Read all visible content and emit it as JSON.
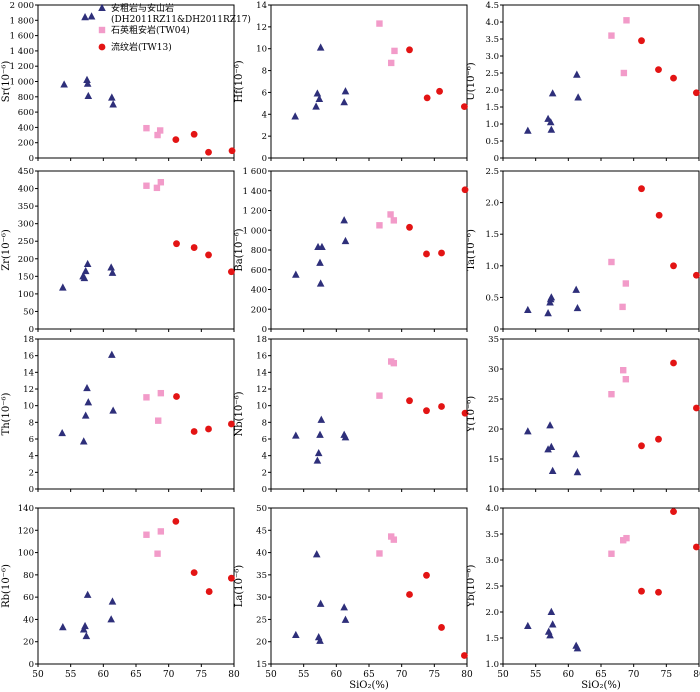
{
  "figure": {
    "x_axis_label": "SiO₂(%)"
  },
  "legend": {
    "entries": [
      {
        "series": "andesite",
        "label_lines": [
          "安粗岩与安山岩",
          "(DH2011RZ11&DH2011RZ17)"
        ]
      },
      {
        "series": "quartz_trachyte",
        "label_lines": [
          "石英粗安岩(TW04)"
        ]
      },
      {
        "series": "rhyolite",
        "label_lines": [
          "流纹岩(TW13)"
        ]
      }
    ]
  },
  "series_style": {
    "andesite": {
      "marker": "triangle",
      "color": "#2e2f7a"
    },
    "quartz_trachyte": {
      "marker": "square",
      "color": "#f29bc9"
    },
    "rhyolite": {
      "marker": "circle",
      "color": "#e31414"
    }
  },
  "chart_data": [
    {
      "type": "scatter",
      "ylabel": "Sr(10⁻⁶)",
      "xlim": [
        50,
        80
      ],
      "ylim": [
        0,
        2000
      ],
      "yticks": [
        "0",
        "200",
        "400",
        "600",
        "800",
        "1 000",
        "1 200",
        "1 400",
        "1 600",
        "1 800",
        "2 000"
      ],
      "xticks": [],
      "series": [
        {
          "key": "andesite",
          "x": [
            54,
            57.2,
            57.5,
            57.6,
            57.7,
            58.2,
            61.3,
            61.5
          ],
          "y": [
            960,
            1840,
            1020,
            970,
            810,
            1850,
            790,
            700
          ]
        },
        {
          "key": "quartz_trachyte",
          "x": [
            66.6,
            68.3,
            68.7
          ],
          "y": [
            390,
            300,
            360
          ]
        },
        {
          "key": "rhyolite",
          "x": [
            71.1,
            73.9,
            76.1,
            79.7
          ],
          "y": [
            240,
            310,
            75,
            95
          ]
        }
      ]
    },
    {
      "type": "scatter",
      "ylabel": "Hf(10⁻⁶)",
      "xlim": [
        50,
        80
      ],
      "ylim": [
        0,
        14
      ],
      "yticks": [
        "0",
        "2",
        "4",
        "6",
        "8",
        "10",
        "12",
        "14"
      ],
      "xticks": [],
      "series": [
        {
          "key": "andesite",
          "x": [
            53.7,
            56.9,
            57.1,
            57.4,
            57.6,
            61.2,
            61.4
          ],
          "y": [
            3.8,
            4.7,
            5.9,
            5.4,
            10.1,
            5.1,
            6.1
          ]
        },
        {
          "key": "quartz_trachyte",
          "x": [
            66.6,
            68.4,
            68.9
          ],
          "y": [
            12.3,
            8.7,
            9.8
          ]
        },
        {
          "key": "rhyolite",
          "x": [
            71.2,
            73.9,
            75.8,
            79.6
          ],
          "y": [
            9.9,
            5.5,
            6.1,
            4.7
          ]
        }
      ]
    },
    {
      "type": "scatter",
      "ylabel": "U(10⁻⁶)",
      "xlim": [
        50,
        80
      ],
      "ylim": [
        0,
        4.5
      ],
      "yticks": [
        "0",
        "0.5",
        "1.0",
        "1.5",
        "2.0",
        "2.5",
        "3.0",
        "3.5",
        "4.0",
        "4.5"
      ],
      "xticks": [],
      "series": [
        {
          "key": "andesite",
          "x": [
            53.8,
            56.9,
            57.3,
            57.4,
            57.6,
            61.3,
            61.5
          ],
          "y": [
            0.8,
            1.15,
            1.05,
            0.83,
            1.9,
            2.45,
            1.78
          ]
        },
        {
          "key": "quartz_trachyte",
          "x": [
            66.6,
            68.5,
            68.9
          ],
          "y": [
            3.6,
            2.5,
            4.05
          ]
        },
        {
          "key": "rhyolite",
          "x": [
            71.2,
            73.8,
            76.1,
            79.6
          ],
          "y": [
            3.45,
            2.6,
            2.35,
            1.92
          ]
        }
      ]
    },
    {
      "type": "scatter",
      "ylabel": "Zr(10⁻⁶)",
      "xlim": [
        50,
        80
      ],
      "ylim": [
        0,
        450
      ],
      "yticks": [
        "0",
        "50",
        "100",
        "150",
        "200",
        "250",
        "300",
        "350",
        "400",
        "450"
      ],
      "xticks": [],
      "series": [
        {
          "key": "andesite",
          "x": [
            53.8,
            56.9,
            57.1,
            57.3,
            57.6,
            61.2,
            61.4
          ],
          "y": [
            118,
            150,
            145,
            165,
            185,
            175,
            160
          ]
        },
        {
          "key": "quartz_trachyte",
          "x": [
            66.6,
            68.2,
            68.8
          ],
          "y": [
            408,
            402,
            418
          ]
        },
        {
          "key": "rhyolite",
          "x": [
            71.2,
            73.9,
            76.1,
            79.6
          ],
          "y": [
            243,
            232,
            211,
            163
          ]
        }
      ]
    },
    {
      "type": "scatter",
      "ylabel": "Ba(10⁻⁶)",
      "xlim": [
        50,
        80
      ],
      "ylim": [
        0,
        1600
      ],
      "yticks": [
        "0",
        "200",
        "400",
        "600",
        "800",
        "1 000",
        "1 200",
        "1 400",
        "1 600"
      ],
      "xticks": [],
      "series": [
        {
          "key": "andesite",
          "x": [
            53.8,
            57.2,
            57.5,
            57.6,
            57.8,
            61.2,
            61.4
          ],
          "y": [
            550,
            830,
            670,
            460,
            830,
            1100,
            890
          ]
        },
        {
          "key": "quartz_trachyte",
          "x": [
            66.6,
            68.3,
            68.8
          ],
          "y": [
            1050,
            1160,
            1100
          ]
        },
        {
          "key": "rhyolite",
          "x": [
            71.2,
            73.8,
            76.1,
            79.7
          ],
          "y": [
            1030,
            760,
            770,
            1410
          ]
        }
      ]
    },
    {
      "type": "scatter",
      "ylabel": "Ta(10⁻⁶)",
      "xlim": [
        50,
        80
      ],
      "ylim": [
        0,
        2.5
      ],
      "yticks": [
        "0",
        "0.5",
        "1.0",
        "1.5",
        "2.0",
        "2.5"
      ],
      "xticks": [],
      "series": [
        {
          "key": "andesite",
          "x": [
            53.8,
            56.9,
            57.2,
            57.3,
            57.4,
            61.2,
            61.4
          ],
          "y": [
            0.3,
            0.25,
            0.42,
            0.47,
            0.5,
            0.62,
            0.33
          ]
        },
        {
          "key": "quartz_trachyte",
          "x": [
            66.6,
            68.3,
            68.8
          ],
          "y": [
            1.06,
            0.35,
            0.72
          ]
        },
        {
          "key": "rhyolite",
          "x": [
            71.2,
            73.9,
            76.1,
            79.6
          ],
          "y": [
            2.22,
            1.8,
            1.0,
            0.85
          ]
        }
      ]
    },
    {
      "type": "scatter",
      "ylabel": "Th(10⁻⁶)",
      "xlim": [
        50,
        80
      ],
      "ylim": [
        0,
        18
      ],
      "yticks": [
        "0",
        "2",
        "4",
        "6",
        "8",
        "10",
        "12",
        "14",
        "16",
        "18"
      ],
      "xticks": [],
      "series": [
        {
          "key": "andesite",
          "x": [
            53.7,
            57.0,
            57.3,
            57.5,
            57.7,
            61.3,
            61.5
          ],
          "y": [
            6.7,
            5.7,
            8.8,
            12.1,
            10.4,
            16.1,
            9.4
          ]
        },
        {
          "key": "quartz_trachyte",
          "x": [
            66.6,
            68.4,
            68.8
          ],
          "y": [
            11.0,
            8.2,
            11.5
          ]
        },
        {
          "key": "rhyolite",
          "x": [
            71.2,
            73.9,
            76.1,
            79.6
          ],
          "y": [
            11.1,
            6.9,
            7.2,
            7.8
          ]
        }
      ]
    },
    {
      "type": "scatter",
      "ylabel": "Nb(10⁻⁶)",
      "xlim": [
        50,
        80
      ],
      "ylim": [
        0,
        18
      ],
      "yticks": [
        "0",
        "2",
        "4",
        "6",
        "8",
        "10",
        "12",
        "14",
        "16",
        "18"
      ],
      "xticks": [],
      "series": [
        {
          "key": "andesite",
          "x": [
            53.8,
            57.1,
            57.3,
            57.5,
            57.7,
            61.2,
            61.4
          ],
          "y": [
            6.4,
            3.4,
            4.3,
            6.5,
            8.3,
            6.5,
            6.2
          ]
        },
        {
          "key": "quartz_trachyte",
          "x": [
            66.6,
            68.4,
            68.8
          ],
          "y": [
            11.2,
            15.3,
            15.1
          ]
        },
        {
          "key": "rhyolite",
          "x": [
            71.2,
            73.8,
            76.1,
            79.7
          ],
          "y": [
            10.6,
            9.4,
            9.9,
            9.1
          ]
        }
      ]
    },
    {
      "type": "scatter",
      "ylabel": "Y(10⁻⁶)",
      "xlim": [
        50,
        80
      ],
      "ylim": [
        10,
        35
      ],
      "yticks": [
        "10",
        "15",
        "20",
        "25",
        "30",
        "35"
      ],
      "xticks": [],
      "series": [
        {
          "key": "andesite",
          "x": [
            53.8,
            56.9,
            57.2,
            57.4,
            57.6,
            61.2,
            61.4
          ],
          "y": [
            19.6,
            16.6,
            20.6,
            17.0,
            13.0,
            15.8,
            12.8
          ]
        },
        {
          "key": "quartz_trachyte",
          "x": [
            66.6,
            68.4,
            68.8
          ],
          "y": [
            25.8,
            29.8,
            28.3
          ]
        },
        {
          "key": "rhyolite",
          "x": [
            71.2,
            73.8,
            76.1,
            79.6
          ],
          "y": [
            17.2,
            18.3,
            31.0,
            23.5
          ]
        }
      ]
    },
    {
      "type": "scatter",
      "ylabel": "Rb(10⁻⁶)",
      "xlim": [
        50,
        80
      ],
      "ylim": [
        0,
        140
      ],
      "yticks": [
        "0",
        "20",
        "40",
        "60",
        "80",
        "100",
        "120",
        "140"
      ],
      "xticks": [
        "50",
        "55",
        "60",
        "65",
        "70",
        "75",
        "80"
      ],
      "series": [
        {
          "key": "andesite",
          "x": [
            53.8,
            57.0,
            57.2,
            57.4,
            57.6,
            61.2,
            61.4
          ],
          "y": [
            33,
            31,
            34,
            25,
            62,
            40,
            56
          ]
        },
        {
          "key": "quartz_trachyte",
          "x": [
            66.6,
            68.3,
            68.8
          ],
          "y": [
            116,
            99,
            119
          ]
        },
        {
          "key": "rhyolite",
          "x": [
            71.1,
            73.9,
            76.2,
            79.6
          ],
          "y": [
            128,
            82,
            65,
            77
          ]
        }
      ]
    },
    {
      "type": "scatter",
      "ylabel": "La(10⁻⁶)",
      "xlim": [
        50,
        80
      ],
      "ylim": [
        15,
        50
      ],
      "yticks": [
        "15",
        "20",
        "25",
        "30",
        "35",
        "40",
        "45",
        "50"
      ],
      "xticks": [
        "50",
        "55",
        "60",
        "65",
        "70",
        "75",
        "80"
      ],
      "xlabel": "SiO₂(%)",
      "series": [
        {
          "key": "andesite",
          "x": [
            53.8,
            57.0,
            57.3,
            57.5,
            57.6,
            61.2,
            61.4
          ],
          "y": [
            21.5,
            39.6,
            21.0,
            20.2,
            28.5,
            27.7,
            24.9
          ]
        },
        {
          "key": "quartz_trachyte",
          "x": [
            66.6,
            68.4,
            68.8
          ],
          "y": [
            39.8,
            43.6,
            42.9
          ]
        },
        {
          "key": "rhyolite",
          "x": [
            71.2,
            73.8,
            76.1,
            79.6
          ],
          "y": [
            30.6,
            34.9,
            23.2,
            16.9
          ]
        }
      ]
    },
    {
      "type": "scatter",
      "ylabel": "Yb(10⁻⁶)",
      "xlim": [
        50,
        80
      ],
      "ylim": [
        1.0,
        4.0
      ],
      "yticks": [
        "1.0",
        "1.5",
        "2.0",
        "2.5",
        "3.0",
        "3.5",
        "4.0"
      ],
      "xticks": [
        "50",
        "55",
        "60",
        "65",
        "70",
        "75",
        "80"
      ],
      "xlabel": "SiO₂(%)",
      "series": [
        {
          "key": "andesite",
          "x": [
            53.8,
            57.0,
            57.2,
            57.4,
            57.6,
            61.2,
            61.4
          ],
          "y": [
            1.73,
            1.62,
            1.55,
            2.0,
            1.76,
            1.35,
            1.3
          ]
        },
        {
          "key": "quartz_trachyte",
          "x": [
            66.6,
            68.4,
            68.9
          ],
          "y": [
            3.12,
            3.38,
            3.42
          ]
        },
        {
          "key": "rhyolite",
          "x": [
            71.2,
            73.8,
            76.1,
            79.6
          ],
          "y": [
            2.4,
            2.38,
            3.93,
            3.25
          ]
        }
      ]
    }
  ]
}
